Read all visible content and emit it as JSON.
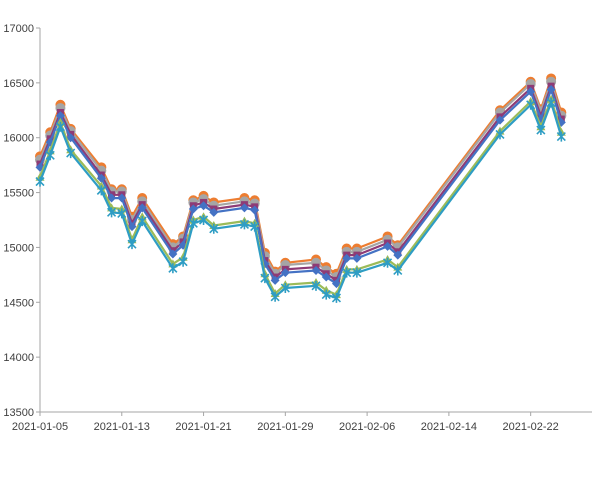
{
  "chart_data": {
    "type": "line",
    "title": "",
    "xlabel": "",
    "ylabel": "",
    "ylim": [
      13500,
      17000
    ],
    "yticks": [
      13500,
      14000,
      14500,
      15000,
      15500,
      16000,
      16500,
      17000
    ],
    "yticklabels": [
      "13500",
      "14000",
      "14500",
      "15000",
      "15500",
      "16000",
      "16500",
      "17000"
    ],
    "xlim": [
      "2021-01-05",
      "2021-02-28"
    ],
    "xticks": [
      "2021-01-05",
      "2021-01-13",
      "2021-01-21",
      "2021-01-29",
      "2021-02-06",
      "2021-02-14",
      "2021-02-22"
    ],
    "grid": false,
    "legend": "none",
    "x": [
      "2021-01-05",
      "2021-01-06",
      "2021-01-07",
      "2021-01-08",
      "2021-01-11",
      "2021-01-12",
      "2021-01-13",
      "2021-01-14",
      "2021-01-15",
      "2021-01-18",
      "2021-01-19",
      "2021-01-20",
      "2021-01-21",
      "2021-01-22",
      "2021-01-25",
      "2021-01-26",
      "2021-01-27",
      "2021-01-28",
      "2021-01-29",
      "2021-02-01",
      "2021-02-02",
      "2021-02-03",
      "2021-02-04",
      "2021-02-05",
      "2021-02-08",
      "2021-02-09",
      "2021-02-19",
      "2021-02-22",
      "2021-02-23",
      "2021-02-24",
      "2021-02-25"
    ],
    "series": [
      {
        "color": "#ed7d31",
        "marker": "circle",
        "values": [
          15830,
          16050,
          16300,
          16080,
          15730,
          15530,
          15530,
          15280,
          15450,
          15030,
          15100,
          15430,
          15470,
          15410,
          15450,
          15430,
          14950,
          14780,
          14860,
          14890,
          14820,
          14760,
          14990,
          14990,
          15100,
          15020,
          16250,
          16510,
          16260,
          16540,
          16230
        ]
      },
      {
        "color": "#a5a5a5",
        "marker": "circle",
        "values": [
          15800,
          16020,
          16270,
          16060,
          15700,
          15510,
          15510,
          15250,
          15420,
          15000,
          15080,
          15410,
          15440,
          15380,
          15420,
          15400,
          14920,
          14760,
          14840,
          14860,
          14790,
          14730,
          14960,
          14960,
          15070,
          15000,
          16230,
          16490,
          16240,
          16510,
          16200
        ]
      },
      {
        "color": "#8e3b76",
        "marker": "square",
        "values": [
          15760,
          15990,
          16230,
          16030,
          15660,
          15480,
          15480,
          15220,
          15390,
          14970,
          15050,
          15380,
          15410,
          15350,
          15390,
          15370,
          14880,
          14730,
          14800,
          14820,
          14760,
          14700,
          14930,
          14930,
          15040,
          14960,
          16190,
          16450,
          16200,
          16470,
          16170
        ]
      },
      {
        "color": "#4472c4",
        "marker": "diamond",
        "values": [
          15730,
          15960,
          16200,
          16000,
          15630,
          15450,
          15450,
          15190,
          15360,
          14940,
          15020,
          15350,
          15380,
          15320,
          15360,
          15340,
          14850,
          14700,
          14770,
          14790,
          14730,
          14670,
          14900,
          14900,
          15010,
          14930,
          16160,
          16420,
          16170,
          16440,
          16140
        ]
      },
      {
        "color": "#9bbb59",
        "marker": "triangle",
        "values": [
          15640,
          15880,
          16140,
          15890,
          15560,
          15360,
          15350,
          15070,
          15280,
          14850,
          14910,
          15250,
          15280,
          15200,
          15240,
          15220,
          14760,
          14580,
          14660,
          14680,
          14610,
          14570,
          14800,
          14800,
          14890,
          14820,
          16060,
          16330,
          16100,
          16350,
          16050
        ]
      },
      {
        "color": "#2e9dc4",
        "marker": "star",
        "values": [
          15600,
          15840,
          16100,
          15860,
          15520,
          15320,
          15310,
          15030,
          15240,
          14810,
          14870,
          15220,
          15250,
          15170,
          15210,
          15190,
          14720,
          14550,
          14630,
          14650,
          14570,
          14540,
          14770,
          14770,
          14860,
          14790,
          16030,
          16300,
          16070,
          16320,
          16010
        ]
      }
    ]
  }
}
